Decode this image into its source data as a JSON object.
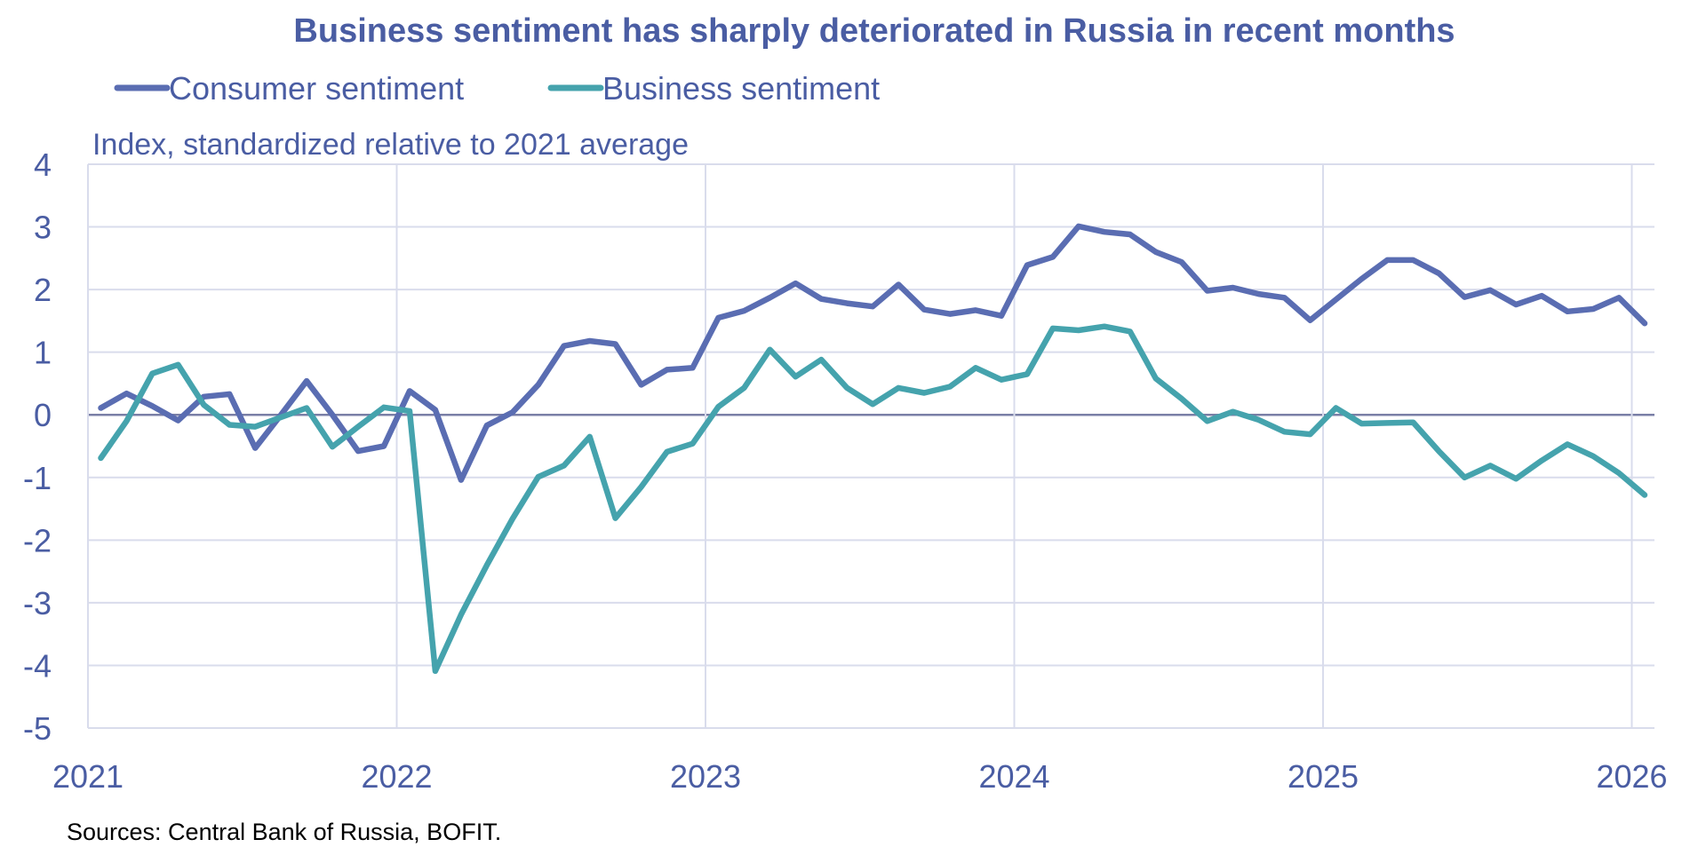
{
  "chart_data": {
    "type": "line",
    "title": "Business sentiment has sharply deteriorated in Russia in recent months",
    "subtitle": "Index, standardized relative to 2021 average",
    "source": "Sources: Central Bank of Russia, BOFIT.",
    "xlabel": "",
    "ylabel": "",
    "x_start": "2021-01",
    "x_frequency": "monthly",
    "xlim": [
      2021,
      2026
    ],
    "ylim": [
      -5,
      4
    ],
    "x_ticks": [
      "2021",
      "2022",
      "2023",
      "2024",
      "2025",
      "2026"
    ],
    "y_ticks": [
      "4",
      "3",
      "2",
      "1",
      "0",
      "-1",
      "-2",
      "-3",
      "-4",
      "-5"
    ],
    "grid": true,
    "legend_position": "top-left",
    "colors": {
      "text": "#4a5da3",
      "grid": "#d9dcec",
      "zero_line": "#7a7fa6"
    },
    "series": [
      {
        "name": "Consumer sentiment",
        "color": "#5a6db2",
        "values": [
          0.11,
          0.34,
          0.14,
          -0.09,
          0.29,
          0.33,
          -0.53,
          0.0,
          0.54,
          0.0,
          -0.58,
          -0.5,
          0.38,
          0.08,
          -1.04,
          -0.17,
          0.04,
          0.48,
          1.1,
          1.18,
          1.13,
          0.48,
          0.72,
          0.75,
          1.55,
          1.66,
          1.87,
          2.1,
          1.85,
          1.78,
          1.73,
          2.08,
          1.68,
          1.61,
          1.67,
          1.58,
          2.39,
          2.52,
          3.01,
          2.92,
          2.88,
          2.6,
          2.44,
          1.98,
          2.03,
          1.93,
          1.87,
          1.51,
          1.84,
          2.17,
          2.47,
          2.47,
          2.26,
          1.88,
          1.99,
          1.76,
          1.9,
          1.65,
          1.69,
          1.87,
          1.46
        ]
      },
      {
        "name": "Business sentiment",
        "color": "#45a3ad",
        "values": [
          -0.69,
          -0.1,
          0.66,
          0.8,
          0.16,
          -0.16,
          -0.19,
          -0.04,
          0.11,
          -0.51,
          -0.19,
          0.12,
          0.06,
          -4.09,
          -3.19,
          -2.4,
          -1.66,
          -0.99,
          -0.81,
          -0.35,
          -1.65,
          -1.15,
          -0.59,
          -0.46,
          0.13,
          0.43,
          1.04,
          0.61,
          0.88,
          0.43,
          0.17,
          0.43,
          0.35,
          0.45,
          0.75,
          0.56,
          0.65,
          1.38,
          1.35,
          1.41,
          1.33,
          0.58,
          0.26,
          -0.1,
          0.05,
          -0.08,
          -0.27,
          -0.31,
          0.11,
          -0.14,
          -0.13,
          -0.12,
          -0.58,
          -1.0,
          -0.81,
          -1.02,
          -0.73,
          -0.47,
          -0.66,
          -0.93,
          -1.28
        ]
      }
    ]
  }
}
